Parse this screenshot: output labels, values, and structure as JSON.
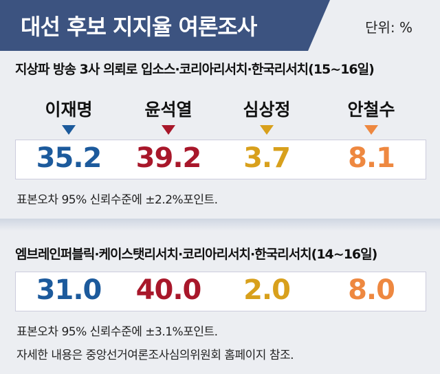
{
  "title": "대선 후보 지지율 여론조사",
  "unit": "단위: %",
  "candidates": [
    {
      "name": "이재명",
      "color": "#1c5a9c"
    },
    {
      "name": "윤석열",
      "color": "#a8172a"
    },
    {
      "name": "심상정",
      "color": "#d8a01c"
    },
    {
      "name": "안철수",
      "color": "#ee8840"
    }
  ],
  "polls": [
    {
      "source": "지상파 방송 3사 의뢰로 입소스·코리아리서치·한국리서치(15~16일)",
      "values": [
        "35.2",
        "39.2",
        "3.7",
        "8.1"
      ],
      "note": "표본오차 95% 신뢰수준에 ±2.2%포인트."
    },
    {
      "source": "엠브레인퍼블릭·케이스탯리서치·코리아리서치·한국리서치(14~16일)",
      "values": [
        "31.0",
        "40.0",
        "2.0",
        "8.0"
      ],
      "note": "표본오차 95% 신뢰수준에 ±3.1%포인트."
    }
  ],
  "footer": "자세한 내용은 중앙선거여론조사심의위원회 홈페이지 참조."
}
